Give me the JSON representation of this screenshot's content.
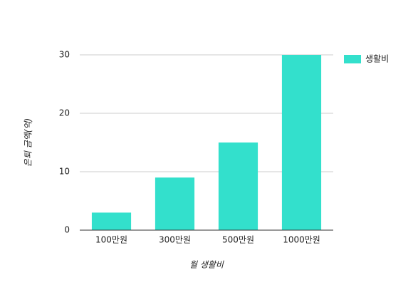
{
  "chart_data": {
    "type": "bar",
    "x_label": "월 생활비",
    "y_label": "은퇴 금액(억)",
    "categories": [
      "100만원",
      "300만원",
      "500만원",
      "1000만원"
    ],
    "series": [
      {
        "name": "생활비",
        "color": "#33e0cc",
        "values": [
          3,
          9,
          15,
          30
        ]
      }
    ],
    "ylim": [
      0,
      30
    ],
    "yticks": [
      0,
      10,
      20,
      30
    ],
    "grid": true,
    "legend": "right"
  }
}
